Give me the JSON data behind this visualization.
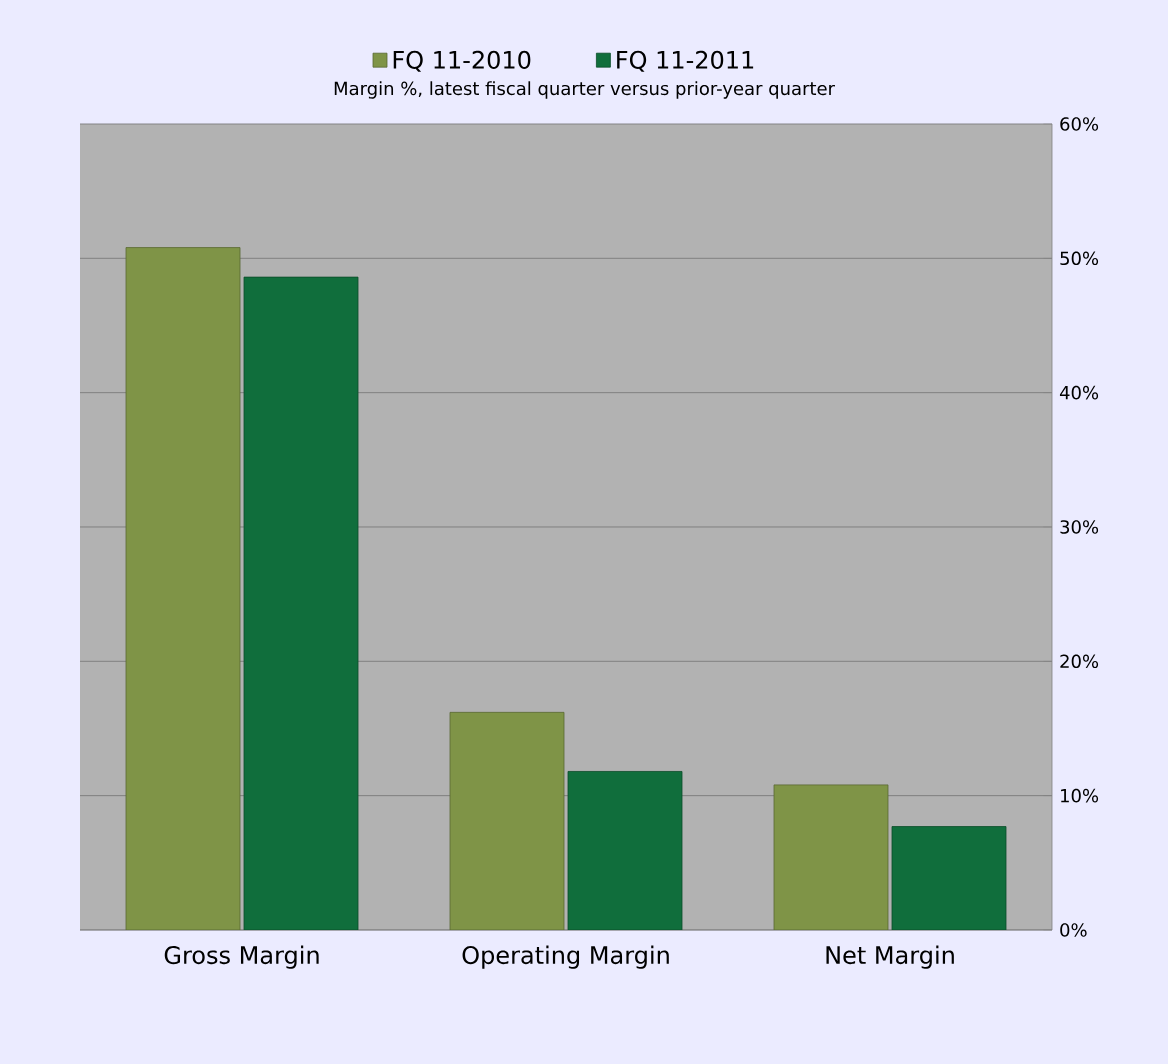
{
  "chart_data": {
    "type": "bar",
    "subtitle": "Margin %,  latest fiscal quarter versus prior-year quarter",
    "categories": [
      "Gross Margin",
      "Operating Margin",
      "Net Margin"
    ],
    "series": [
      {
        "name": "FQ 11-2010",
        "color": "#7f9447",
        "values": [
          50.8,
          16.2,
          10.8
        ]
      },
      {
        "name": "FQ 11-2011",
        "color": "#106e3c",
        "values": [
          48.6,
          11.8,
          7.7
        ]
      }
    ],
    "ylim": [
      0,
      60
    ],
    "yticks": [
      {
        "value": 0,
        "label": "0%"
      },
      {
        "value": 10,
        "label": "10%"
      },
      {
        "value": 20,
        "label": "20%"
      },
      {
        "value": 30,
        "label": "30%"
      },
      {
        "value": 40,
        "label": "40%"
      },
      {
        "value": 50,
        "label": "50%"
      },
      {
        "value": 60,
        "label": "60%"
      }
    ],
    "grid": "y",
    "legend": "top"
  }
}
